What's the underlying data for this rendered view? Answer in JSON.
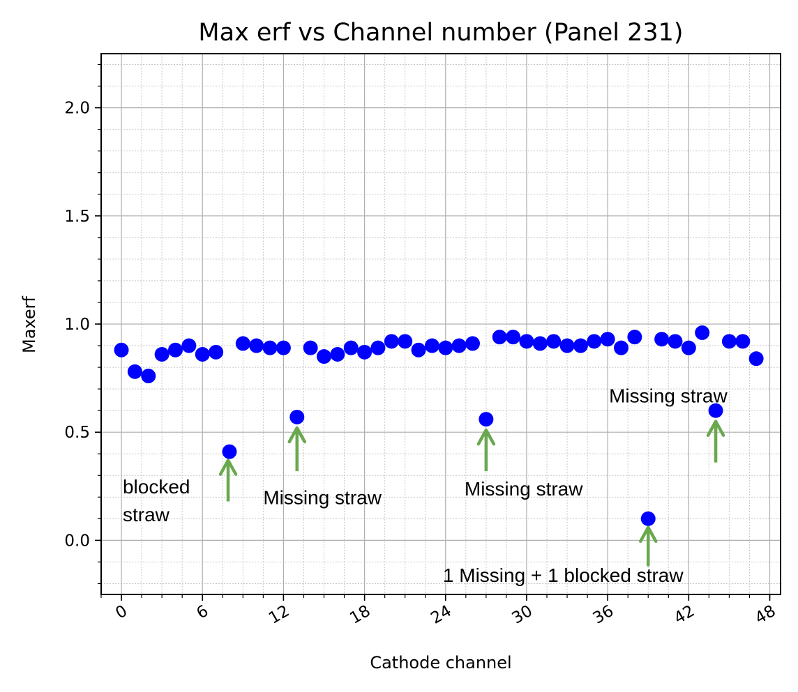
{
  "chart_data": {
    "type": "scatter",
    "title": "Max erf vs Channel number (Panel 231)",
    "xlabel": "Cathode channel",
    "ylabel": "Maxerf",
    "xlim": [
      -1.5,
      48.8
    ],
    "ylim": [
      -0.25,
      2.25
    ],
    "xticks": [
      0,
      6,
      12,
      18,
      24,
      30,
      36,
      42,
      48
    ],
    "xtick_labels": [
      "0",
      "6",
      "12",
      "18",
      "24",
      "30",
      "36",
      "42",
      "48"
    ],
    "yticks": [
      0.0,
      0.5,
      1.0,
      1.5,
      2.0
    ],
    "ytick_labels": [
      "0.0",
      "0.5",
      "1.0",
      "1.5",
      "2.0"
    ],
    "grid": true,
    "minor_grid": true,
    "marker_color": "#0000ff",
    "arrow_color": "#6aa84f",
    "series": [
      {
        "x": [
          0,
          1,
          2,
          3,
          4,
          5,
          6,
          7,
          8,
          9,
          10,
          11,
          12,
          13,
          14,
          15,
          16,
          17,
          18,
          19,
          20,
          21,
          22,
          23,
          24,
          25,
          26,
          27,
          28,
          29,
          30,
          31,
          32,
          33,
          34,
          35,
          36,
          37,
          38,
          39,
          40,
          41,
          42,
          43,
          44,
          45,
          46,
          47
        ],
        "y": [
          0.88,
          0.78,
          0.76,
          0.86,
          0.88,
          0.9,
          0.86,
          0.87,
          0.41,
          0.91,
          0.9,
          0.89,
          0.89,
          0.57,
          0.89,
          0.85,
          0.86,
          0.89,
          0.87,
          0.89,
          0.92,
          0.92,
          0.88,
          0.9,
          0.89,
          0.9,
          0.91,
          0.56,
          0.94,
          0.94,
          0.92,
          0.91,
          0.92,
          0.9,
          0.9,
          0.92,
          0.93,
          0.89,
          0.94,
          0.1,
          0.93,
          0.92,
          0.89,
          0.96,
          0.6,
          0.92,
          0.92,
          0.84
        ]
      }
    ],
    "annotations": [
      {
        "lines": [
          "blocked",
          "straw"
        ],
        "text_x": 0.1,
        "text_y": 0.25,
        "arrow_x": 7.9,
        "arrow_from": 0.18,
        "arrow_to": 0.37
      },
      {
        "lines": [
          "Missing straw"
        ],
        "text_x": 10.5,
        "text_y": 0.2,
        "arrow_x": 13.0,
        "arrow_from": 0.32,
        "arrow_to": 0.52
      },
      {
        "lines": [
          "Missing straw"
        ],
        "text_x": 25.4,
        "text_y": 0.24,
        "arrow_x": 27.0,
        "arrow_from": 0.32,
        "arrow_to": 0.51
      },
      {
        "lines": [
          "1 Missing + 1 blocked straw"
        ],
        "text_x": 23.8,
        "text_y": -0.16,
        "arrow_x": 39.0,
        "arrow_from": -0.12,
        "arrow_to": 0.06
      },
      {
        "lines": [
          "Missing straw"
        ],
        "text_x": 36.1,
        "text_y": 0.67,
        "arrow_x": 44.0,
        "arrow_from": 0.36,
        "arrow_to": 0.55
      }
    ]
  }
}
